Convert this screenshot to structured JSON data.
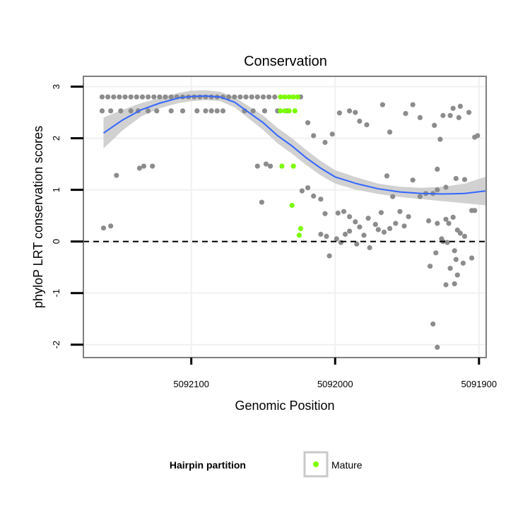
{
  "chart_data": {
    "type": "scatter",
    "title": "Conservation",
    "xlabel": "Genomic Position",
    "ylabel": "phyloP LRT conservation scores",
    "x_reversed": true,
    "xlim": [
      5092175,
      5091895
    ],
    "ylim": [
      -2.25,
      3.2
    ],
    "x_ticks": [
      5092100,
      5092000,
      5091900
    ],
    "x_tick_labels": [
      "5092100",
      "5092000",
      "5091900"
    ],
    "y_ticks": [
      -2,
      -1,
      0,
      1,
      2,
      3
    ],
    "y_tick_labels": [
      "-2",
      "-1",
      "0",
      "1",
      "2",
      "3"
    ],
    "reference_line": {
      "y": 0,
      "style": "dashed"
    },
    "grid": true,
    "legend": {
      "title": "Hairpin partition",
      "position": "bottom",
      "entries": [
        "Mature"
      ]
    },
    "colors": {
      "other": "#8c8c8c",
      "mature": "#7cfc00",
      "smooth": "#3366ff",
      "band": "#c9c9c9",
      "grid": "#f0f0f0",
      "border": "#7f7f7f"
    },
    "series": [
      {
        "name": "",
        "color": "#8c8c8c",
        "points": [
          [
            5092161,
            0.26
          ],
          [
            5092156,
            0.3
          ],
          [
            5092152,
            1.28
          ],
          [
            5092136,
            1.42
          ],
          [
            5092133,
            1.46
          ],
          [
            5092127,
            1.46
          ],
          [
            5092162,
            2.8
          ],
          [
            5092158,
            2.8
          ],
          [
            5092154,
            2.8
          ],
          [
            5092150,
            2.8
          ],
          [
            5092146,
            2.8
          ],
          [
            5092142,
            2.8
          ],
          [
            5092138,
            2.8
          ],
          [
            5092134,
            2.8
          ],
          [
            5092130,
            2.8
          ],
          [
            5092126,
            2.8
          ],
          [
            5092122,
            2.8
          ],
          [
            5092118,
            2.8
          ],
          [
            5092114,
            2.8
          ],
          [
            5092110,
            2.8
          ],
          [
            5092106,
            2.8
          ],
          [
            5092102,
            2.8
          ],
          [
            5092098,
            2.8
          ],
          [
            5092094,
            2.8
          ],
          [
            5092090,
            2.8
          ],
          [
            5092086,
            2.8
          ],
          [
            5092082,
            2.8
          ],
          [
            5092078,
            2.8
          ],
          [
            5092074,
            2.8
          ],
          [
            5092070,
            2.8
          ],
          [
            5092066,
            2.8
          ],
          [
            5092062,
            2.8
          ],
          [
            5092058,
            2.8
          ],
          [
            5092054,
            2.8
          ],
          [
            5092050,
            2.8
          ],
          [
            5092046,
            2.8
          ],
          [
            5092042,
            2.8
          ],
          [
            5092024,
            2.8
          ],
          [
            5092162,
            2.53
          ],
          [
            5092156,
            2.53
          ],
          [
            5092149,
            2.53
          ],
          [
            5092142,
            2.53
          ],
          [
            5092137,
            2.53
          ],
          [
            5092130,
            2.53
          ],
          [
            5092124,
            2.53
          ],
          [
            5092114,
            2.53
          ],
          [
            5092106,
            2.53
          ],
          [
            5092096,
            2.53
          ],
          [
            5092090,
            2.53
          ],
          [
            5092086,
            2.53
          ],
          [
            5092082,
            2.53
          ],
          [
            5092078,
            2.53
          ],
          [
            5092063,
            2.53
          ],
          [
            5092057,
            2.53
          ],
          [
            5092049,
            2.53
          ],
          [
            5092040,
            2.53
          ],
          [
            5092033,
            2.53
          ],
          [
            5092054,
            1.46
          ],
          [
            5092048,
            1.5
          ],
          [
            5092045,
            1.46
          ],
          [
            5092051,
            0.76
          ],
          [
            5092019,
            2.3
          ],
          [
            5092015,
            2.05
          ],
          [
            5092007,
            1.92
          ],
          [
            5092002,
            2.08
          ],
          [
            5091997,
            2.49
          ],
          [
            5091990,
            2.53
          ],
          [
            5091986,
            2.5
          ],
          [
            5091983,
            2.33
          ],
          [
            5091978,
            2.26
          ],
          [
            5091967,
            2.65
          ],
          [
            5091962,
            2.12
          ],
          [
            5091951,
            2.48
          ],
          [
            5091946,
            2.65
          ],
          [
            5091941,
            2.4
          ],
          [
            5091931,
            2.25
          ],
          [
            5091927,
            1.98
          ],
          [
            5091925,
            2.44
          ],
          [
            5091920,
            2.44
          ],
          [
            5091913,
            2.62
          ],
          [
            5091907,
            2.5
          ],
          [
            5091903,
            2.02
          ],
          [
            5091901,
            2.05
          ],
          [
            5091918,
            2.58
          ],
          [
            5091914,
            2.4
          ],
          [
            5092019,
            1.04
          ],
          [
            5092015,
            0.88
          ],
          [
            5092010,
            0.82
          ],
          [
            5092023,
            0.98
          ],
          [
            5092007,
            0.54
          ],
          [
            5091998,
            0.55
          ],
          [
            5091994,
            0.58
          ],
          [
            5091990,
            0.48
          ],
          [
            5091986,
            0.38
          ],
          [
            5091983,
            0.28
          ],
          [
            5091977,
            0.45
          ],
          [
            5091972,
            0.33
          ],
          [
            5091968,
            0.56
          ],
          [
            5091964,
            1.27
          ],
          [
            5091960,
            0.87
          ],
          [
            5091955,
            0.58
          ],
          [
            5091952,
            0.3
          ],
          [
            5091949,
            0.48
          ],
          [
            5091946,
            1.19
          ],
          [
            5091941,
            0.87
          ],
          [
            5091937,
            0.93
          ],
          [
            5091932,
            0.93
          ],
          [
            5091929,
            1.0
          ],
          [
            5091923,
            1.05
          ],
          [
            5091916,
            1.22
          ],
          [
            5091910,
            1.2
          ],
          [
            5091905,
            0.6
          ],
          [
            5091903,
            0.6
          ],
          [
            5092004,
            -0.28
          ],
          [
            5091996,
            -0.02
          ],
          [
            5091990,
            0.2
          ],
          [
            5091985,
            -0.05
          ],
          [
            5091980,
            0.12
          ],
          [
            5091976,
            -0.12
          ],
          [
            5091970,
            0.23
          ],
          [
            5091966,
            0.18
          ],
          [
            5091962,
            0.25
          ],
          [
            5091958,
            0.35
          ],
          [
            5092010,
            0.14
          ],
          [
            5092006,
            0.1
          ],
          [
            5091999,
            0.05
          ],
          [
            5091993,
            0.14
          ],
          [
            5091935,
            0.4
          ],
          [
            5091929,
            0.35
          ],
          [
            5091926,
            0.05
          ],
          [
            5091922,
            -0.02
          ],
          [
            5091929,
            1.4
          ],
          [
            5091918,
            0.47
          ],
          [
            5091915,
            0.22
          ],
          [
            5091913,
            0.16
          ],
          [
            5091910,
            0.1
          ],
          [
            5091917,
            -0.18
          ],
          [
            5091930,
            -0.22
          ],
          [
            5091934,
            -0.48
          ],
          [
            5091920,
            -0.52
          ],
          [
            5091915,
            -0.65
          ],
          [
            5091911,
            -0.42
          ],
          [
            5091917,
            -0.82
          ],
          [
            5091923,
            -0.84
          ],
          [
            5091905,
            -0.32
          ],
          [
            5091932,
            -1.6
          ],
          [
            5091929,
            -2.05
          ],
          [
            5091925,
            0.0
          ],
          [
            5091921,
            0.35
          ],
          [
            5091923,
            0.43
          ],
          [
            5091916,
            -0.35
          ]
        ]
      },
      {
        "name": "Mature",
        "color": "#7cfc00",
        "points": [
          [
            5092038,
            2.8
          ],
          [
            5092035,
            2.8
          ],
          [
            5092032,
            2.8
          ],
          [
            5092029,
            2.8
          ],
          [
            5092026,
            2.8
          ],
          [
            5092038,
            2.53
          ],
          [
            5092035,
            2.53
          ],
          [
            5092032,
            2.53
          ],
          [
            5092028,
            2.53
          ],
          [
            5092037,
            1.46
          ],
          [
            5092029,
            1.46
          ],
          [
            5092030,
            0.7
          ],
          [
            5092024,
            0.25
          ],
          [
            5092025,
            0.12
          ]
        ]
      }
    ],
    "smooth": {
      "x": [
        5092161,
        5092148,
        5092135,
        5092122,
        5092109,
        5092100,
        5092090,
        5092080,
        5092070,
        5092060,
        5092050,
        5092040,
        5092030,
        5092020,
        5092010,
        5092000,
        5091985,
        5091970,
        5091955,
        5091940,
        5091925,
        5091910,
        5091895
      ],
      "y": [
        2.1,
        2.35,
        2.55,
        2.68,
        2.78,
        2.81,
        2.82,
        2.8,
        2.7,
        2.5,
        2.3,
        2.05,
        1.85,
        1.62,
        1.42,
        1.25,
        1.12,
        1.02,
        0.96,
        0.93,
        0.92,
        0.93,
        0.98
      ],
      "lower": [
        1.8,
        2.15,
        2.42,
        2.58,
        2.68,
        2.72,
        2.74,
        2.72,
        2.6,
        2.38,
        2.16,
        1.9,
        1.7,
        1.48,
        1.28,
        1.12,
        1.0,
        0.92,
        0.86,
        0.82,
        0.78,
        0.74,
        0.7
      ],
      "upper": [
        2.4,
        2.55,
        2.68,
        2.78,
        2.88,
        2.92,
        2.93,
        2.9,
        2.8,
        2.62,
        2.44,
        2.2,
        2.0,
        1.77,
        1.56,
        1.38,
        1.24,
        1.12,
        1.06,
        1.04,
        1.06,
        1.12,
        1.26
      ]
    }
  }
}
